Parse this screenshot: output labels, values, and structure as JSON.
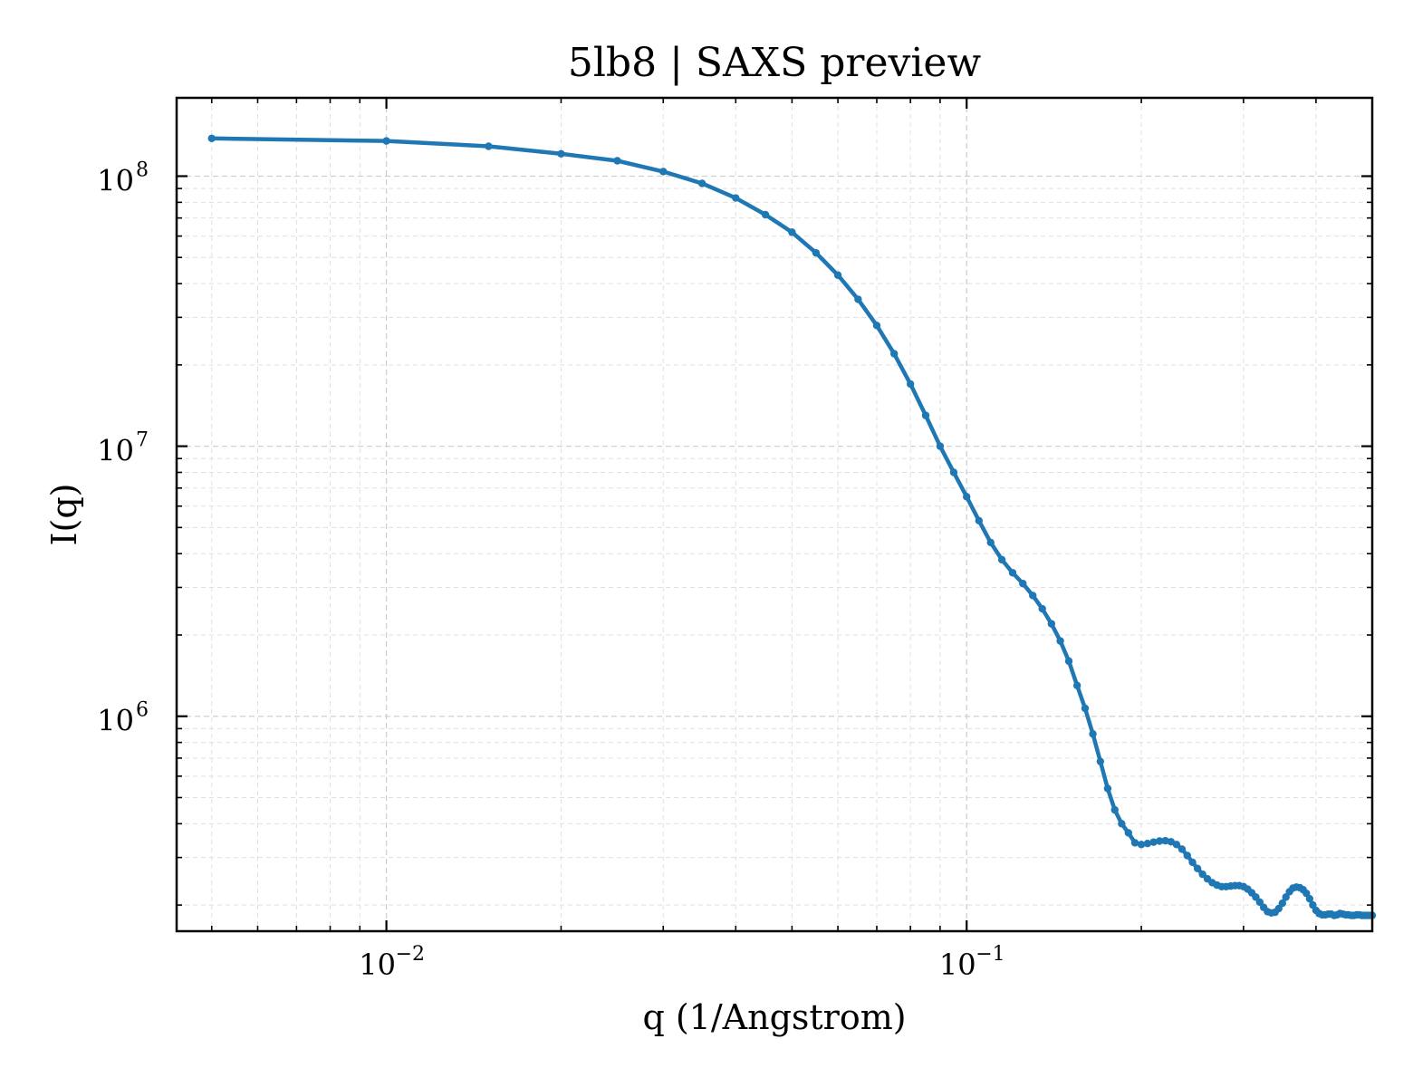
{
  "chart_data": {
    "type": "line",
    "title": "5lb8 | SAXS preview",
    "xlabel": "q (1/Angstrom)",
    "ylabel": "I(q)",
    "xscale": "log",
    "yscale": "log",
    "xlim": [
      0.00435,
      0.5
    ],
    "ylim": [
      160000,
      195000000
    ],
    "grid": true,
    "legend": "none",
    "x_ticks": [
      {
        "base": "10",
        "exp": "−2",
        "value": 0.01
      },
      {
        "base": "10",
        "exp": "−1",
        "value": 0.1
      }
    ],
    "y_ticks": [
      {
        "base": "10",
        "exp": "6",
        "value": 1000000
      },
      {
        "base": "10",
        "exp": "7",
        "value": 10000000
      },
      {
        "base": "10",
        "exp": "8",
        "value": 100000000
      }
    ],
    "series": [
      {
        "color": "#1f77b4",
        "marker": "circle",
        "x": [
          0.005,
          0.01,
          0.015,
          0.02,
          0.025,
          0.03,
          0.035,
          0.04,
          0.045,
          0.05,
          0.055,
          0.06,
          0.065,
          0.07,
          0.075,
          0.08,
          0.085,
          0.09,
          0.095,
          0.1,
          0.105,
          0.11,
          0.115,
          0.12,
          0.125,
          0.13,
          0.135,
          0.14,
          0.145,
          0.15,
          0.155,
          0.16,
          0.165,
          0.17,
          0.175,
          0.18,
          0.185,
          0.19,
          0.195,
          0.2,
          0.205,
          0.21,
          0.215,
          0.22,
          0.225,
          0.23,
          0.235,
          0.24,
          0.245,
          0.25,
          0.255,
          0.26,
          0.265,
          0.27,
          0.275,
          0.28,
          0.285,
          0.29,
          0.295,
          0.3,
          0.305,
          0.31,
          0.315,
          0.32,
          0.325,
          0.33,
          0.335,
          0.34,
          0.345,
          0.35,
          0.355,
          0.36,
          0.365,
          0.37,
          0.375,
          0.38,
          0.385,
          0.39,
          0.395,
          0.4,
          0.405,
          0.41,
          0.415,
          0.42,
          0.425,
          0.43,
          0.435,
          0.44,
          0.445,
          0.45,
          0.455,
          0.46,
          0.465,
          0.47,
          0.475,
          0.48,
          0.485,
          0.49,
          0.495,
          0.5
        ],
        "y": [
          138000000,
          135000000,
          129000000,
          121000000,
          114000000,
          104000000,
          94000000,
          83000000,
          72000000,
          62000000,
          52000000,
          43000000,
          35000000,
          28000000,
          22000000,
          17000000,
          13000000,
          10000000,
          8000000,
          6500000,
          5300000,
          4400000,
          3800000,
          3400000,
          3100000,
          2800000,
          2500000,
          2200000,
          1900000,
          1600000,
          1300000,
          1070000,
          860000,
          680000,
          540000,
          450000,
          400000,
          370000,
          340000,
          335000,
          338000,
          342000,
          345000,
          346000,
          343000,
          335000,
          322000,
          305000,
          288000,
          273000,
          260000,
          250000,
          242000,
          237000,
          234000,
          234000,
          235000,
          236000,
          236000,
          234000,
          229000,
          222000,
          214000,
          205000,
          196000,
          189000,
          187000,
          188000,
          194000,
          203000,
          214000,
          224000,
          231000,
          233000,
          232000,
          228000,
          221000,
          211000,
          200000,
          191000,
          186000,
          184000,
          184000,
          185000,
          185000,
          183000,
          184000,
          186000,
          185000,
          184000,
          184000,
          183000,
          183000,
          184000,
          184000,
          183000,
          183000,
          183000,
          183000,
          183000
        ]
      }
    ]
  }
}
